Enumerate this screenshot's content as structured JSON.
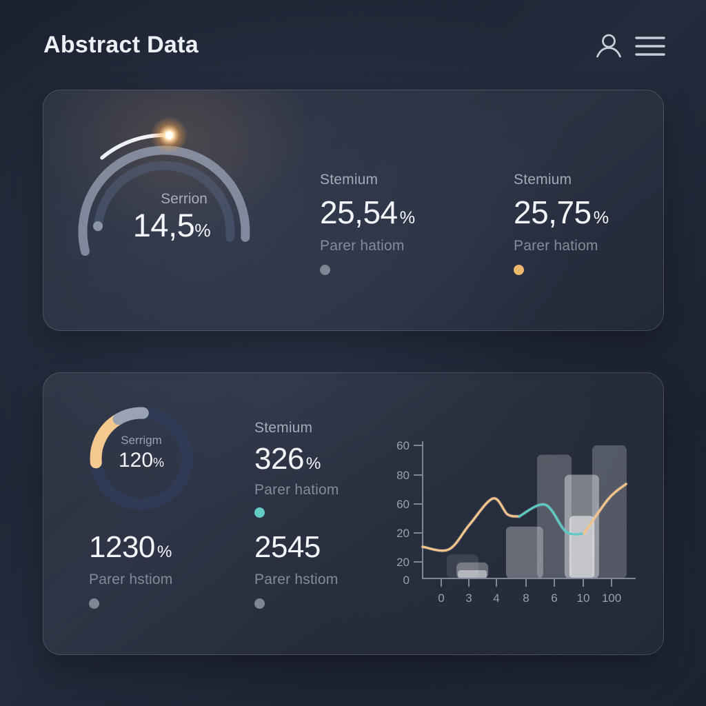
{
  "header": {
    "title": "Abstract Data",
    "profile_icon": "person-icon",
    "menu_icon": "hamburger-menu-icon"
  },
  "colors": {
    "accent_orange": "#f0c48c",
    "accent_teal": "#5fc9c4",
    "dot_gray": "#7f8796",
    "dot_orange": "#eeb96f",
    "dot_teal": "#62cbc6",
    "axis": "#7e8795",
    "donut_ring": "#303a55",
    "donut_arc_orange": "#f4c88e",
    "donut_arc_gray": "#9aa3b3"
  },
  "card1": {
    "gauge": {
      "label": "Serrion",
      "value": "14,5",
      "unit": "%"
    },
    "stats": [
      {
        "title": "Stemium",
        "value": "25,54",
        "unit": "%",
        "sub": "Parer hatiom",
        "dot_color": "#7f8796"
      },
      {
        "title": "Stemium",
        "value": "25,75",
        "unit": "%",
        "sub": "Parer hatiom",
        "dot_color": "#eeb96f"
      }
    ]
  },
  "card2": {
    "donut": {
      "label": "Serrigm",
      "value": "120",
      "unit": "%"
    },
    "stat_top": {
      "title": "Stemium",
      "value": "326",
      "unit": "%",
      "sub": "Parer hatiom",
      "dot_color": "#62cbc6"
    },
    "stats_bottom": [
      {
        "value": "1230",
        "unit": "%",
        "sub": "Parer hstiom",
        "dot_color": "#7f8796"
      },
      {
        "value": "2545",
        "unit": "",
        "sub": "Parer hstiom",
        "dot_color": "#7f8796"
      }
    ]
  },
  "chart_data": {
    "type": "combo-bar-line",
    "title": "",
    "xlabel": "",
    "ylabel": "",
    "legend": "none",
    "grid": false,
    "y_tick_labels_top_to_bottom": [
      "60",
      "80",
      "60",
      "20",
      "20",
      "0"
    ],
    "x_tick_labels": [
      "0",
      "3",
      "4",
      "8",
      "6",
      "10",
      "100"
    ],
    "bars_pct_of_plot": [
      {
        "x_pct": 19.1,
        "w_pct": 15.2,
        "v_pct": 18,
        "alpha": 0.1
      },
      {
        "x_pct": 23.8,
        "w_pct": 15.2,
        "v_pct": 12,
        "alpha": 0.3,
        "base_strip": true
      },
      {
        "x_pct": 48.8,
        "w_pct": 17.8,
        "v_pct": 39,
        "alpha": 0.3
      },
      {
        "x_pct": 63.0,
        "w_pct": 16.5,
        "v_pct": 93,
        "alpha": 0.22
      },
      {
        "x_pct": 76.2,
        "w_pct": 16.5,
        "v_pct": 78,
        "alpha": 0.4,
        "inner": {
          "w_pct": 11.9,
          "v_pct": 47,
          "alpha": 0.55
        }
      },
      {
        "x_pct": 89.4,
        "w_pct": 16.5,
        "v_pct": 100,
        "alpha": 0.22
      }
    ],
    "lines_pct_of_plot": [
      {
        "name": "orange-left",
        "color": "#f0c48c",
        "points": [
          [
            0,
            23.8
          ],
          [
            12.5,
            21.8
          ],
          [
            22.4,
            40.4
          ],
          [
            33.7,
            60.1
          ],
          [
            40.6,
            48.2
          ],
          [
            46.2,
            46.6
          ]
        ]
      },
      {
        "name": "teal-mid",
        "color": "#5fc9c4",
        "points": [
          [
            46.2,
            46.6
          ],
          [
            58.7,
            55.4
          ],
          [
            68.6,
            35.2
          ],
          [
            77.2,
            33.7
          ]
        ]
      },
      {
        "name": "orange-right",
        "color": "#f0c48c",
        "points": [
          [
            77.2,
            33.7
          ],
          [
            89.1,
            60.1
          ],
          [
            97.4,
            71.0
          ]
        ]
      }
    ]
  }
}
